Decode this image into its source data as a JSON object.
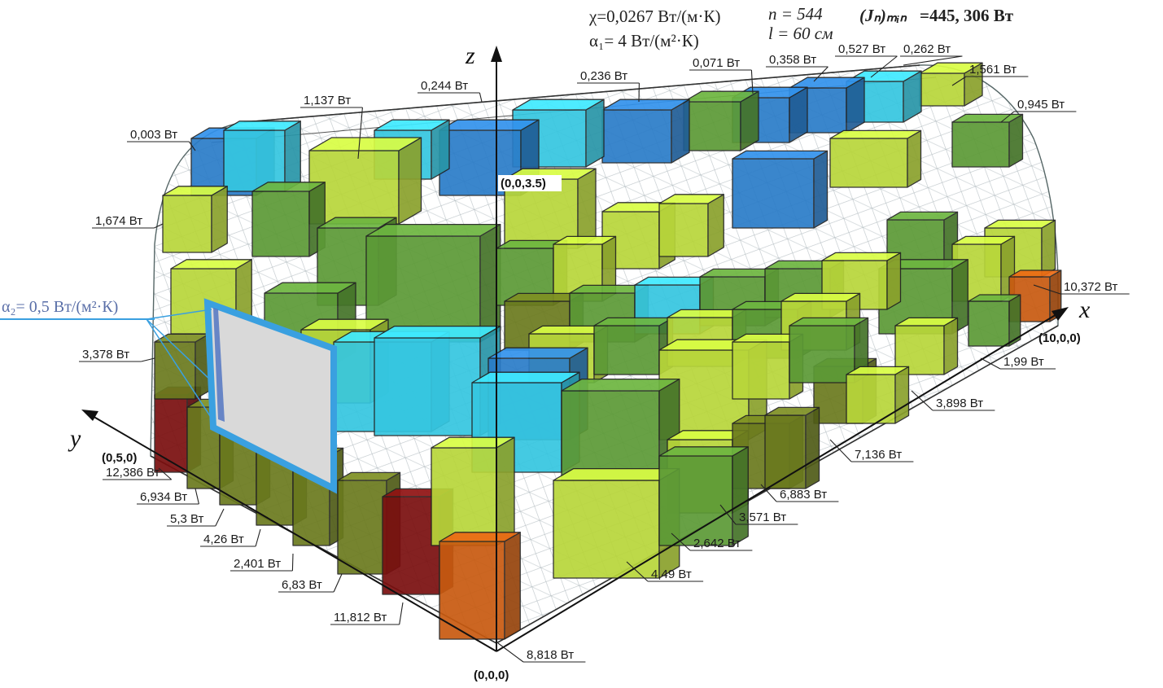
{
  "params": {
    "chi": "χ=0,0267 Вт/(м·К)",
    "alpha1": "α₁= 4 Вт/(м²·К)",
    "n": "n = 544",
    "l": "l = 60 см",
    "jmin_label": "(Jₙ)ₘᵢₙ",
    "jmin_value": "=445, 306 Вт",
    "alpha2": "α₂= 0,5 Вт/(м²·К)"
  },
  "axes": {
    "x": "x",
    "y": "y",
    "z": "z",
    "origin": "(0,0,0)",
    "x_end": "(10,0,0)",
    "y_end": "(0,5,0)",
    "z_end": "(0,0,3.5)"
  },
  "heat_labels": {
    "top": [
      "0,244 Вт",
      "0,236 Вт",
      "0,071 Вт",
      "0,358 Вт",
      "0,527 Вт",
      "0,262 Вт",
      "1,561 Вт",
      "0,945 Вт",
      "1,137 Вт",
      "0,003 Вт"
    ],
    "left": [
      "1,674 Вт",
      "3,378 Вт"
    ],
    "right": [
      "10,372 Вт",
      "1,99 Вт",
      "3,898 Вт",
      "7,136 Вт",
      "6,883 Вт",
      "3,571 Вт",
      "2,642 Вт",
      "4,49 Вт"
    ],
    "front": [
      "12,386 Вт",
      "6,934 Вт",
      "5,3 Вт",
      "4,26 Вт",
      "2,401 Вт",
      "6,83 Вт",
      "11,812 Вт",
      "8,818 Вт"
    ]
  },
  "colors": {
    "dark_red": "#7a0f0f",
    "orange": "#c85a10",
    "olive": "#6b7a1e",
    "lime": "#b8d63a",
    "green": "#5c9a36",
    "cyan": "#35c6e0",
    "blue": "#2a7cc8",
    "window": "#d9d9d9",
    "window_frame": "#3aa0e0"
  }
}
